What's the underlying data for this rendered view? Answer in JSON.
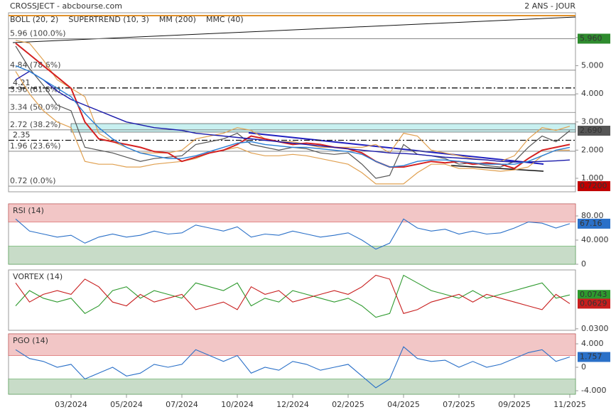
{
  "header": {
    "title": "CROSSJECT - abcbourse.com",
    "period": "2 ANS - JOUR"
  },
  "chart_data": [
    {
      "type": "line",
      "color": "#555555",
      "categories": [
        null,
        null,
        null,
        null,
        "03/2024",
        null,
        null,
        null,
        "05/2024",
        null,
        null,
        null,
        "07/2024",
        null,
        null,
        null,
        "10/2024",
        null,
        null,
        null,
        "12/2024",
        null,
        null,
        null,
        "02/2025",
        null,
        null,
        null,
        "04/2025",
        null,
        null,
        null,
        "07/2025",
        null,
        null,
        null,
        "09/2025",
        null,
        null,
        null,
        "11/2025"
      ],
      "values": [
        5.7,
        4.9,
        4.3,
        3.6,
        3.4,
        2.1,
        2.0,
        1.9,
        1.75,
        1.6,
        1.7,
        1.75,
        1.8,
        2.2,
        2.3,
        2.4,
        2.6,
        2.2,
        2.1,
        2.0,
        2.1,
        2.05,
        1.9,
        1.85,
        1.9,
        1.5,
        1.0,
        1.1,
        2.2,
        1.85,
        1.8,
        1.7,
        1.5,
        1.55,
        1.45,
        1.4,
        1.6,
        2.1,
        2.5,
        2.3,
        2.69
      ],
      "series": [
        {
          "name": "BOLL (20, 2)",
          "color": "#e0a050",
          "values": [
            5.9,
            5.8,
            5.2,
            4.5,
            4.2,
            3.9,
            2.6,
            2.3,
            2.1,
            1.9,
            1.9,
            1.9,
            2.0,
            2.4,
            2.5,
            2.6,
            2.8,
            2.7,
            2.4,
            2.3,
            2.3,
            2.2,
            2.1,
            2.1,
            2.1,
            2.1,
            2.2,
            1.9,
            2.6,
            2.5,
            2.0,
            1.9,
            1.8,
            1.7,
            1.65,
            1.6,
            1.8,
            2.4,
            2.8,
            2.7,
            2.85
          ],
          "lower": [
            4.8,
            4.0,
            3.4,
            3.0,
            2.8,
            1.6,
            1.5,
            1.5,
            1.4,
            1.4,
            1.5,
            1.55,
            1.6,
            1.7,
            1.9,
            2.0,
            2.1,
            1.9,
            1.8,
            1.8,
            1.85,
            1.8,
            1.7,
            1.6,
            1.5,
            1.2,
            0.8,
            0.8,
            0.8,
            1.2,
            1.5,
            1.5,
            1.35,
            1.35,
            1.3,
            1.25,
            1.3,
            1.4,
            1.8,
            2.0,
            2.0
          ]
        },
        {
          "name": "SUPERTREND (10, 3)",
          "color": "#d42020",
          "values": [
            5.8,
            5.4,
            5.0,
            4.6,
            4.2,
            3.0,
            2.4,
            2.3,
            2.2,
            2.1,
            1.95,
            1.9,
            1.6,
            1.75,
            1.9,
            2.0,
            2.2,
            2.5,
            2.4,
            2.3,
            2.2,
            2.25,
            2.2,
            2.1,
            2.05,
            1.9,
            1.6,
            1.4,
            1.4,
            1.5,
            1.6,
            1.55,
            1.6,
            1.5,
            1.55,
            1.5,
            1.35,
            1.7,
            2.0,
            2.1,
            2.2
          ]
        },
        {
          "name": "MM (200)",
          "color": "#1a1aaa",
          "values": [
            4.5,
            4.8,
            4.5,
            4.1,
            3.8,
            3.6,
            3.4,
            3.2,
            3.0,
            2.9,
            2.8,
            2.75,
            2.7,
            2.6,
            2.55,
            2.5,
            2.45,
            2.4,
            2.35,
            2.3,
            2.25,
            2.2,
            2.15,
            2.1,
            2.05,
            2.0,
            1.95,
            1.9,
            1.88,
            1.85,
            1.8,
            1.75,
            1.72,
            1.68,
            1.65,
            1.6,
            1.58,
            1.58,
            1.6,
            1.62,
            1.65
          ]
        },
        {
          "name": "MMC (40)",
          "color": "#2a7fd4",
          "values": [
            5.0,
            4.8,
            4.5,
            4.2,
            3.9,
            3.3,
            2.8,
            2.4,
            2.1,
            1.9,
            1.8,
            1.7,
            1.7,
            1.8,
            1.95,
            2.1,
            2.25,
            2.3,
            2.2,
            2.15,
            2.1,
            2.1,
            2.05,
            2.0,
            1.95,
            1.85,
            1.6,
            1.4,
            1.45,
            1.6,
            1.65,
            1.65,
            1.6,
            1.55,
            1.5,
            1.5,
            1.5,
            1.6,
            1.8,
            2.0,
            2.1
          ]
        }
      ],
      "ylim": [
        0.52,
        6.88
      ],
      "yticks": [
        {
          "value": 1,
          "label": "1.000"
        },
        {
          "value": 2,
          "label": "2.000"
        },
        {
          "value": 3,
          "label": "3.000"
        },
        {
          "value": 4,
          "label": "4.000"
        },
        {
          "value": 5,
          "label": "5.000"
        },
        {
          "value": 6,
          "label": "6.000"
        }
      ],
      "levels": [
        {
          "value": 5.96,
          "label": "5.96 (100.0%)"
        },
        {
          "value": 4.84,
          "label": "4.84 (78.6%)"
        },
        {
          "value": 3.96,
          "label": "3.96 (61.8%)"
        },
        {
          "value": 3.34,
          "label": "3.34 (50.0%)"
        },
        {
          "value": 2.72,
          "label": "2.72 (38.2%)"
        },
        {
          "value": 1.96,
          "label": "1.96 (23.6%)"
        },
        {
          "value": 0.72,
          "label": "0.72 (0.0%)"
        }
      ],
      "lines": [
        {
          "value": 4.21,
          "label": "4.21"
        },
        {
          "value": 2.35,
          "label": "2.35"
        }
      ],
      "tags": [
        {
          "value": 5.96,
          "label": "5.960",
          "color": "#2e8b2e"
        },
        {
          "value": 2.69,
          "label": "2.690",
          "color": "#555555"
        },
        {
          "value": 0.72,
          "label": "0.7200",
          "color": "#c00000"
        }
      ]
    },
    {
      "type": "line",
      "title": "RSI (14)",
      "color": "#2a70c8",
      "values": [
        75,
        55,
        50,
        45,
        48,
        35,
        45,
        50,
        45,
        48,
        55,
        50,
        52,
        65,
        60,
        55,
        62,
        45,
        50,
        48,
        55,
        50,
        45,
        48,
        52,
        40,
        25,
        35,
        75,
        60,
        55,
        58,
        50,
        55,
        50,
        52,
        60,
        70,
        68,
        60,
        67.16
      ],
      "ylim": [
        0,
        100
      ],
      "zones": [
        30,
        70
      ],
      "yticks": [
        0,
        {
          "value": 40,
          "label": "40.000"
        },
        {
          "value": 80,
          "label": "80.00"
        }
      ],
      "tags": [
        {
          "value": 67.16,
          "label": "67.16",
          "color": "#2a70c8"
        }
      ]
    },
    {
      "type": "line",
      "title": "VORTEX (14)",
      "color": "#2e9a2e",
      "series": [
        {
          "color": "#2e9a2e",
          "values": [
            0.06,
            0.08,
            0.07,
            0.065,
            0.07,
            0.05,
            0.06,
            0.08,
            0.085,
            0.07,
            0.08,
            0.075,
            0.07,
            0.09,
            0.085,
            0.08,
            0.09,
            0.06,
            0.07,
            0.065,
            0.08,
            0.075,
            0.07,
            0.065,
            0.07,
            0.06,
            0.045,
            0.05,
            0.1,
            0.09,
            0.08,
            0.075,
            0.07,
            0.08,
            0.07,
            0.075,
            0.08,
            0.085,
            0.09,
            0.07,
            0.0743
          ]
        },
        {
          "color": "#c81e1e",
          "values": [
            0.09,
            0.065,
            0.075,
            0.08,
            0.075,
            0.095,
            0.085,
            0.065,
            0.06,
            0.075,
            0.065,
            0.07,
            0.075,
            0.055,
            0.06,
            0.065,
            0.055,
            0.085,
            0.075,
            0.08,
            0.065,
            0.07,
            0.075,
            0.08,
            0.075,
            0.085,
            0.1,
            0.095,
            0.05,
            0.055,
            0.065,
            0.07,
            0.075,
            0.065,
            0.075,
            0.07,
            0.065,
            0.06,
            0.055,
            0.075,
            0.0629
          ]
        }
      ],
      "ylim": [
        0.028,
        0.107
      ],
      "yticks": [
        {
          "value": 0.03,
          "label": "0.0300"
        }
      ],
      "tags": [
        {
          "value": 0.0743,
          "label": "0.0743",
          "color": "#2e9a2e"
        },
        {
          "value": 0.0629,
          "label": "0.0629",
          "color": "#c81e1e"
        }
      ]
    },
    {
      "type": "line",
      "title": "PGO (14)",
      "color": "#2a70c8",
      "values": [
        3,
        1.5,
        1,
        0,
        0.5,
        -2,
        -1,
        0,
        -1.5,
        -1,
        0.5,
        0,
        0.5,
        3,
        2,
        1,
        2,
        -1,
        0,
        -0.5,
        1,
        0.5,
        -0.5,
        0,
        0.5,
        -1.5,
        -3.5,
        -2,
        3.5,
        1.5,
        1,
        1.2,
        0,
        1,
        0,
        0.5,
        1.5,
        2.5,
        3,
        1,
        1.757
      ],
      "ylim": [
        -4.6,
        5.7
      ],
      "zones": [
        -2,
        2
      ],
      "yticks": [
        {
          "value": -4,
          "label": "-4.000"
        },
        0,
        {
          "value": 4,
          "label": "4.000"
        }
      ],
      "tags": [
        {
          "value": 1.757,
          "label": "1.757",
          "color": "#2a70c8"
        }
      ]
    }
  ]
}
